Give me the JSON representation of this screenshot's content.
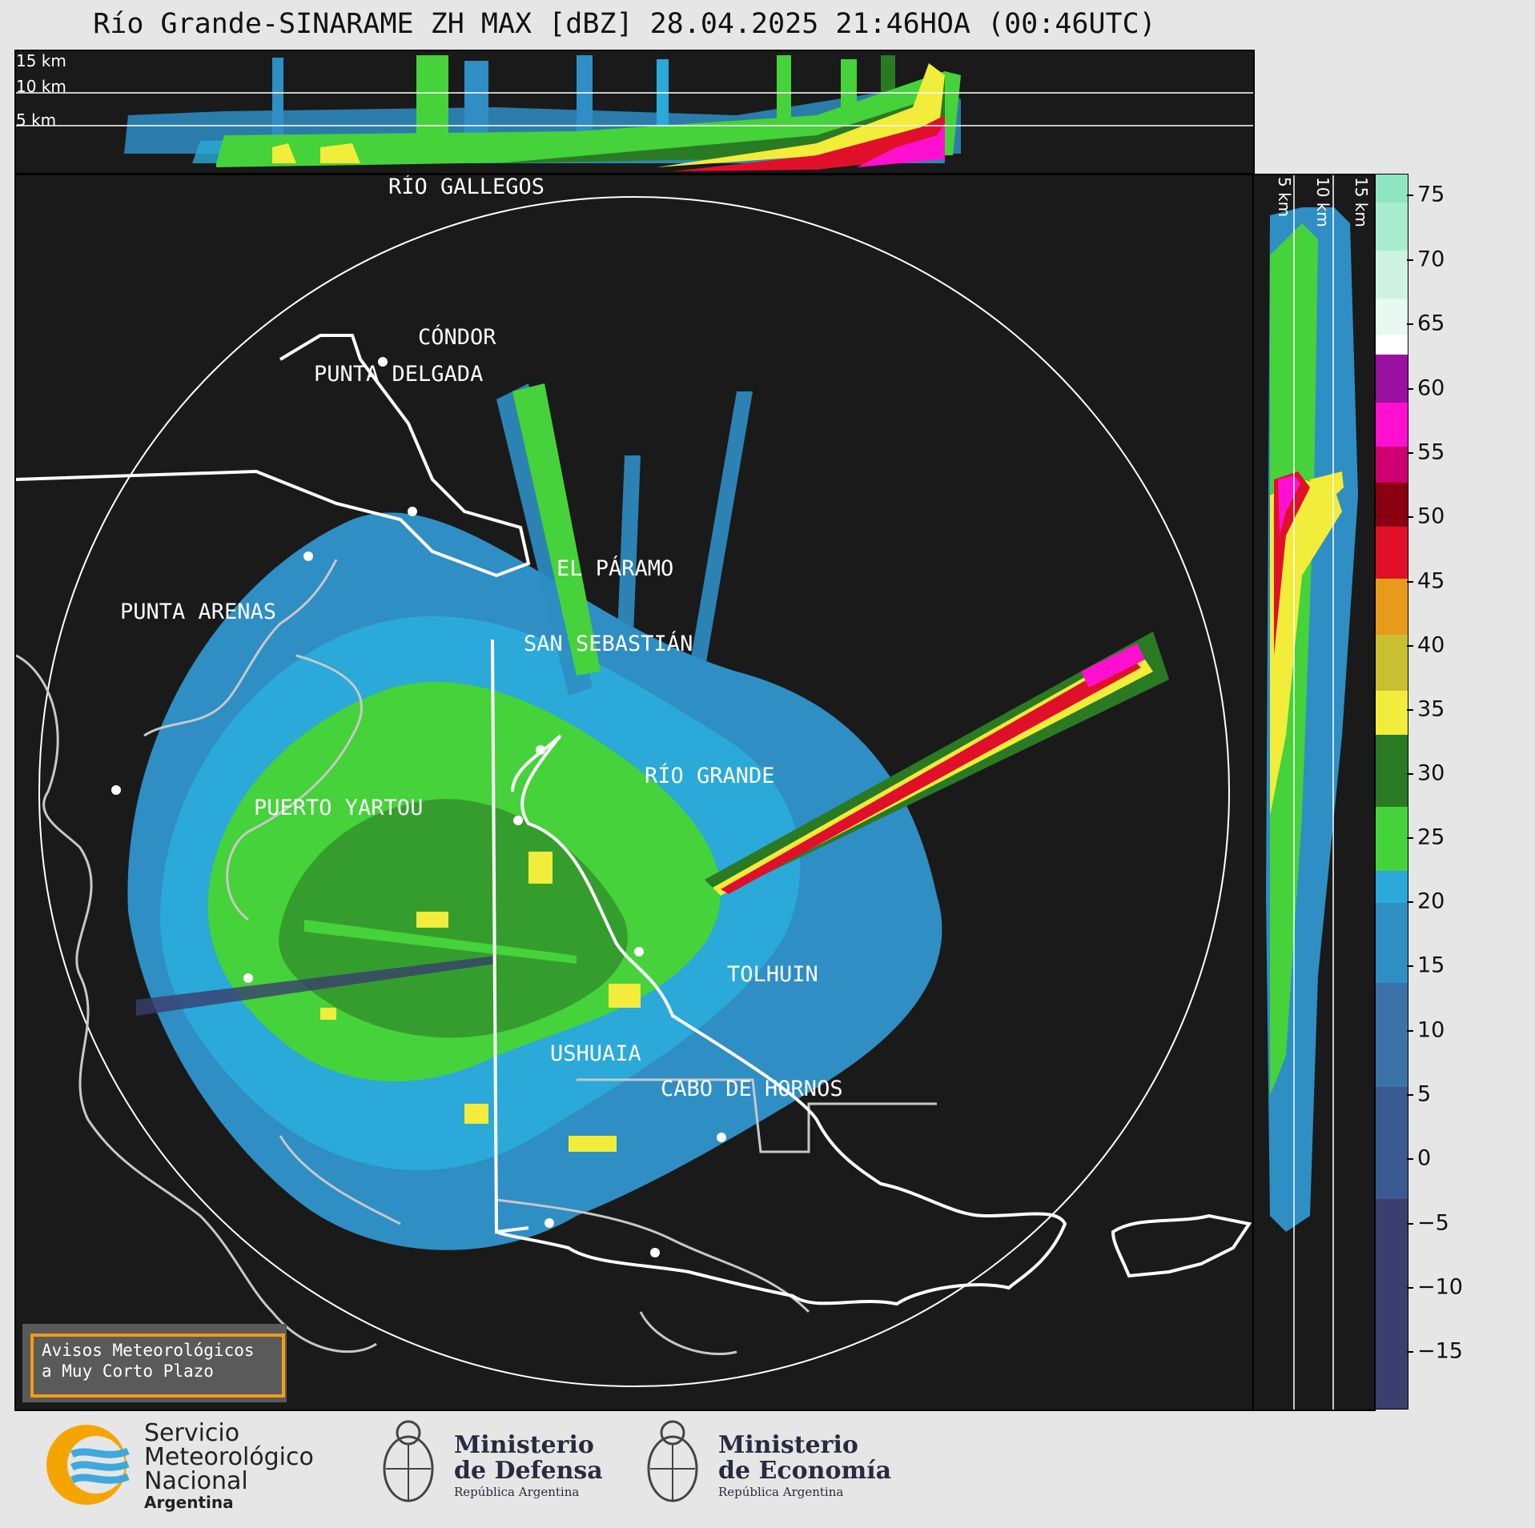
{
  "title": "Río Grande-SINARAME ZH MAX [dBZ] 28.04.2025 21:46HOA (00:46UTC)",
  "top_panel": {
    "levels": [
      "15 km",
      "10 km",
      "5 km"
    ]
  },
  "side_panel": {
    "levels": [
      "5 km",
      "10 km",
      "15 km"
    ]
  },
  "cities": [
    {
      "name": "RÍO GALLEGOS"
    },
    {
      "name": "CÓNDOR"
    },
    {
      "name": "PUNTA DELGADA"
    },
    {
      "name": "EL PÁRAMO"
    },
    {
      "name": "PUNTA ARENAS"
    },
    {
      "name": "SAN SEBASTIÁN"
    },
    {
      "name": "RÍO GRANDE"
    },
    {
      "name": "PUERTO YARTOU"
    },
    {
      "name": "TOLHUIN"
    },
    {
      "name": "USHUAIA"
    },
    {
      "name": "CABO DE HORNOS"
    }
  ],
  "warning": {
    "line1": "Avisos Meteorológicos",
    "line2": "a Muy Corto Plazo"
  },
  "colorbar": {
    "unit": "dBZ",
    "ticks": [
      "75",
      "70",
      "65",
      "60",
      "55",
      "50",
      "45",
      "40",
      "35",
      "30",
      "25",
      "20",
      "15",
      "10",
      "5",
      "0",
      "−5",
      "−10",
      "−15"
    ],
    "colors": {
      "low": "#3a3f6e",
      "blue": "#2f8ec4",
      "cyan": "#2ba9d8",
      "green": "#46d23a",
      "darkgreen": "#2a7a24",
      "yellow": "#f2ec3a",
      "orange": "#e89a1a",
      "red": "#e0102a",
      "darkred": "#8a0010",
      "magenta": "#ff10d0",
      "purple": "#9a10a0",
      "white": "#ffffff",
      "mint": "#8de6c0"
    }
  },
  "logos": {
    "smn_line1": "Servicio",
    "smn_line2": "Meteorológico",
    "smn_line3": "Nacional",
    "smn_line4": "Argentina",
    "defensa_line1": "Ministerio",
    "defensa_line2": "de Defensa",
    "defensa_line3": "República Argentina",
    "economia_line1": "Ministerio",
    "economia_line2": "de Economía",
    "economia_line3": "República Argentina"
  }
}
